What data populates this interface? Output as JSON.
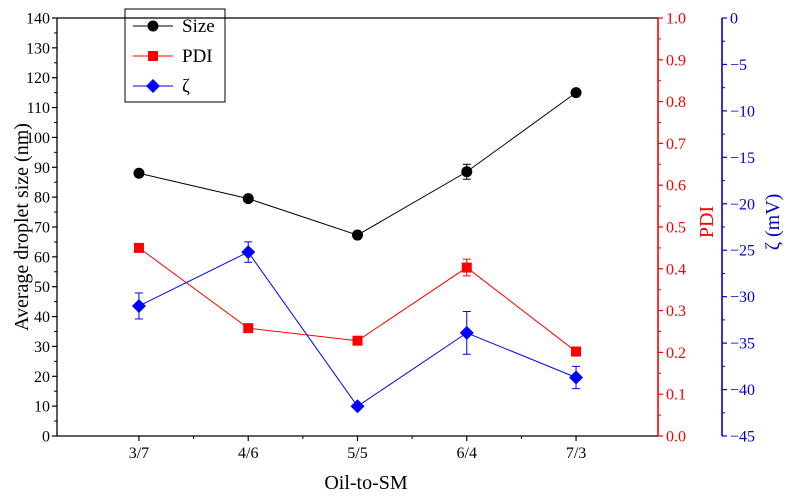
{
  "chart_data": {
    "type": "line",
    "categories": [
      "3/7",
      "4/6",
      "5/5",
      "6/4",
      "7/3"
    ],
    "xlabel": "Oil-to-SM",
    "axes": {
      "left": {
        "label": "Average droplet size (nm)",
        "range": [
          0,
          140
        ],
        "step": 10,
        "color": "#000000"
      },
      "right1": {
        "label": "PDI",
        "range": [
          0.0,
          1.0
        ],
        "step": 0.1,
        "decimals": 1,
        "color": "#ff0000"
      },
      "right2": {
        "label": "ζ (mV)",
        "range": [
          -45,
          0
        ],
        "step": 5,
        "color": "#0000cc"
      }
    },
    "series": [
      {
        "name": "Size",
        "axis": "left",
        "marker": "circle",
        "color": "#000000",
        "values": [
          88,
          79.5,
          67.3,
          88.5,
          115
        ],
        "errors": [
          0,
          0,
          0,
          2.5,
          0
        ]
      },
      {
        "name": "PDI",
        "axis": "right1",
        "marker": "square",
        "color": "#ff0000",
        "values": [
          0.45,
          0.258,
          0.228,
          0.403,
          0.202
        ],
        "errors": [
          0,
          0,
          0.01,
          0.02,
          0.01
        ]
      },
      {
        "name": "ζ",
        "axis": "right2",
        "marker": "diamond",
        "color": "#0000ff",
        "values": [
          -31,
          -25.2,
          -41.8,
          -33.9,
          -38.7
        ],
        "errors": [
          1.4,
          1.1,
          0,
          2.3,
          1.2
        ]
      }
    ],
    "legend": {
      "placement": "top-left",
      "entries": [
        "Size",
        "PDI",
        "ζ"
      ]
    },
    "grid": false
  }
}
